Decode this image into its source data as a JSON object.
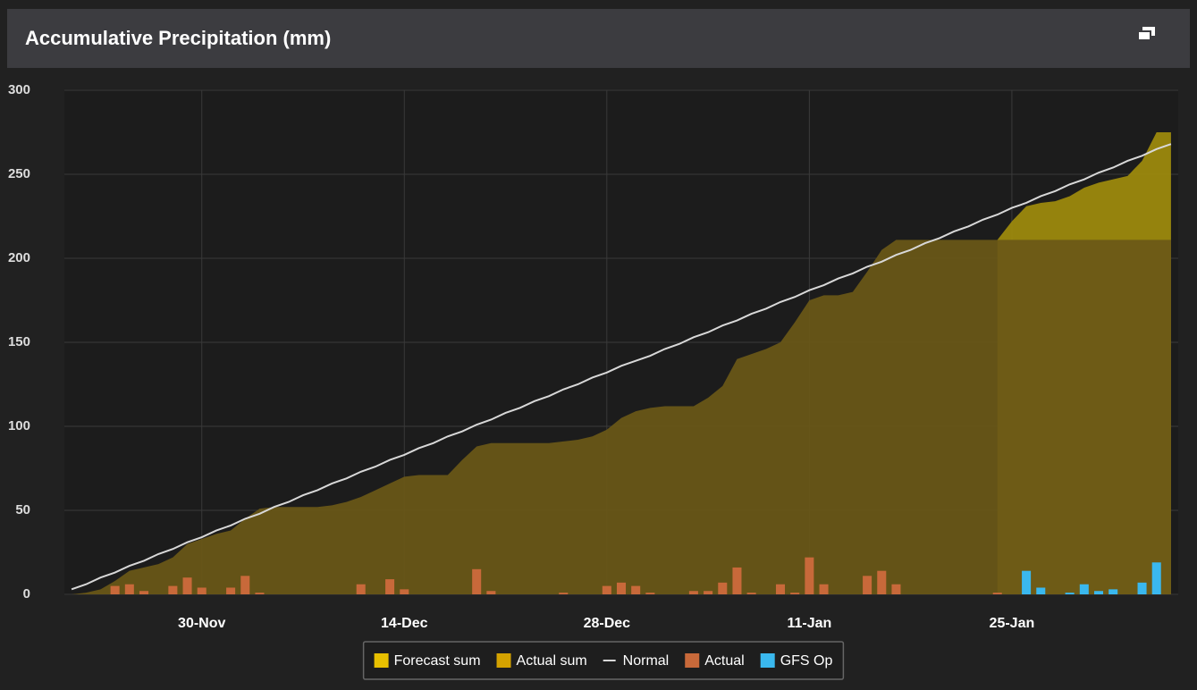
{
  "chart_data": {
    "type": "combo",
    "title": "Accumulative Precipitation (mm)",
    "categories": [
      null,
      null,
      null,
      null,
      null,
      null,
      null,
      null,
      null,
      "30-Nov",
      null,
      null,
      null,
      null,
      null,
      null,
      null,
      null,
      null,
      null,
      null,
      null,
      null,
      "14-Dec",
      null,
      null,
      null,
      null,
      null,
      null,
      null,
      null,
      null,
      null,
      null,
      null,
      null,
      "28-Dec",
      null,
      null,
      null,
      null,
      null,
      null,
      null,
      null,
      null,
      null,
      null,
      null,
      null,
      "11-Jan",
      null,
      null,
      null,
      null,
      null,
      null,
      null,
      null,
      null,
      null,
      null,
      null,
      null,
      "25-Jan",
      null,
      null,
      null,
      null,
      null,
      null,
      null,
      null,
      null,
      null,
      null
    ],
    "ylim": [
      0,
      300
    ],
    "yticks": [
      0,
      50,
      100,
      150,
      200,
      250,
      300
    ],
    "grid": true,
    "series": [
      {
        "name": "Forecast sum",
        "type": "area",
        "color": "#a08c0c",
        "legend_color": "#e8c000",
        "values": [
          null,
          null,
          null,
          null,
          null,
          null,
          null,
          null,
          null,
          null,
          null,
          null,
          null,
          null,
          null,
          null,
          null,
          null,
          null,
          null,
          null,
          null,
          null,
          null,
          null,
          null,
          null,
          null,
          null,
          null,
          null,
          null,
          null,
          null,
          null,
          null,
          null,
          null,
          null,
          null,
          null,
          null,
          null,
          null,
          null,
          null,
          null,
          null,
          null,
          null,
          null,
          null,
          null,
          null,
          null,
          null,
          null,
          null,
          null,
          null,
          null,
          null,
          null,
          null,
          211,
          222,
          231,
          233,
          234,
          237,
          242,
          245,
          247,
          249,
          258,
          275,
          275
        ]
      },
      {
        "name": "Actual sum",
        "type": "area",
        "color": "#6a5817",
        "legend_color": "#d4a200",
        "values": [
          0,
          1,
          3,
          8,
          14,
          16,
          18,
          22,
          30,
          33,
          36,
          38,
          45,
          51,
          52,
          52,
          52,
          52,
          53,
          55,
          58,
          62,
          66,
          70,
          71,
          71,
          71,
          80,
          88,
          90,
          90,
          90,
          90,
          90,
          91,
          92,
          94,
          98,
          105,
          109,
          111,
          112,
          112,
          112,
          117,
          124,
          140,
          143,
          146,
          150,
          162,
          175,
          178,
          178,
          180,
          192,
          205,
          211,
          211,
          211,
          211,
          211,
          211,
          211,
          211,
          211,
          211,
          211,
          211,
          211,
          211,
          211,
          211,
          211,
          211,
          211,
          211
        ]
      },
      {
        "name": "Normal",
        "type": "line",
        "color": "#d8d8d8",
        "values": [
          3,
          6,
          10,
          13,
          17,
          20,
          24,
          27,
          31,
          34,
          38,
          41,
          45,
          48,
          52,
          55,
          59,
          62,
          66,
          69,
          73,
          76,
          80,
          83,
          87,
          90,
          94,
          97,
          101,
          104,
          108,
          111,
          115,
          118,
          122,
          125,
          129,
          132,
          136,
          139,
          142,
          146,
          149,
          153,
          156,
          160,
          163,
          167,
          170,
          174,
          177,
          181,
          184,
          188,
          191,
          195,
          198,
          202,
          205,
          209,
          212,
          216,
          219,
          223,
          226,
          230,
          233,
          237,
          240,
          244,
          247,
          251,
          254,
          258,
          261,
          265,
          268
        ]
      },
      {
        "name": "Actual",
        "type": "bar",
        "color": "#c8693a",
        "values": [
          0,
          0,
          0,
          5,
          6,
          2,
          0,
          5,
          10,
          4,
          0,
          4,
          11,
          1,
          0,
          0,
          0,
          0,
          0,
          0,
          6,
          0,
          9,
          3,
          0,
          0,
          0,
          0,
          15,
          2,
          0,
          0,
          0,
          0,
          1,
          0,
          0,
          5,
          7,
          5,
          1,
          0,
          0,
          2,
          2,
          7,
          16,
          1,
          0,
          6,
          1,
          22,
          6,
          0,
          0,
          11,
          14,
          6,
          0,
          0,
          0,
          0,
          0,
          0,
          1,
          null,
          null,
          null,
          null,
          null,
          null,
          null,
          null,
          null,
          null,
          null,
          null
        ]
      },
      {
        "name": "GFS Op",
        "type": "bar",
        "color": "#3ab8ee",
        "values": [
          null,
          null,
          null,
          null,
          null,
          null,
          null,
          null,
          null,
          null,
          null,
          null,
          null,
          null,
          null,
          null,
          null,
          null,
          null,
          null,
          null,
          null,
          null,
          null,
          null,
          null,
          null,
          null,
          null,
          null,
          null,
          null,
          null,
          null,
          null,
          null,
          null,
          null,
          null,
          null,
          null,
          null,
          null,
          null,
          null,
          null,
          null,
          null,
          null,
          null,
          null,
          null,
          null,
          null,
          null,
          null,
          null,
          null,
          null,
          null,
          null,
          null,
          null,
          null,
          null,
          0,
          14,
          4,
          0,
          1,
          6,
          2,
          3,
          0,
          7,
          19,
          0
        ]
      }
    ]
  }
}
